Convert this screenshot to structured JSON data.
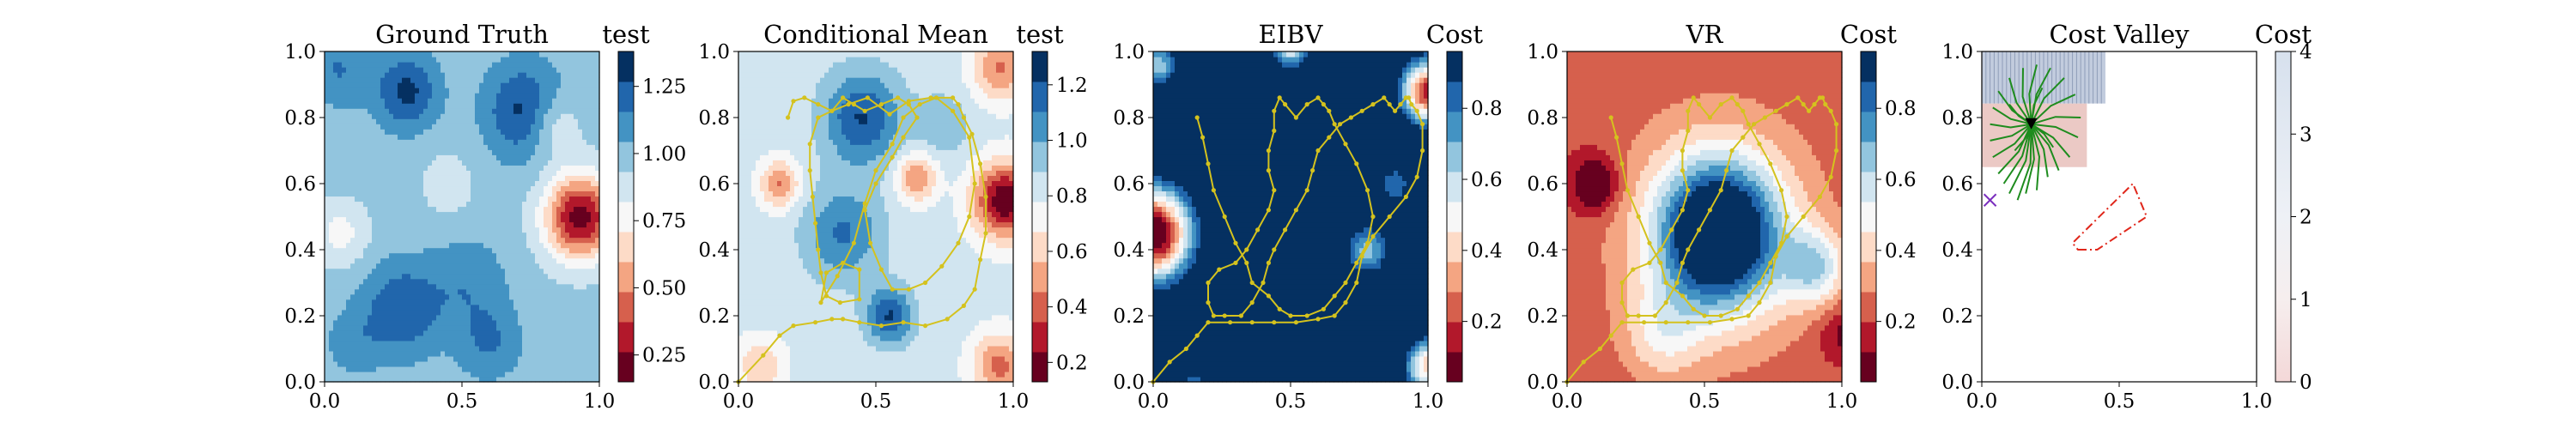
{
  "figure": {
    "colors": {
      "rdbu_classes": [
        "#67001f",
        "#b2182b",
        "#d6604d",
        "#f4a582",
        "#fddbc7",
        "#f7f7f7",
        "#d1e5f0",
        "#92c5de",
        "#4393c3",
        "#2166ac",
        "#053061"
      ],
      "path": "#d4c21e",
      "tree": "#1e8c1e",
      "polygon": "#e0261a",
      "marker_start": "#7b2fbe",
      "marker_current": "#000000"
    }
  },
  "chart_data": [
    {
      "type": "heatmap",
      "title": "Ground Truth",
      "colorbar_label": "test",
      "xlim": [
        0,
        1
      ],
      "ylim": [
        0,
        1
      ],
      "xticks": [
        "0.0",
        "0.5",
        "1.0"
      ],
      "yticks": [
        "0.0",
        "0.2",
        "0.4",
        "0.6",
        "0.8",
        "1.0"
      ],
      "cbar_ticks": [
        "0.25",
        "0.50",
        "0.75",
        "1.00",
        "1.25"
      ],
      "cbar_tick_values": [
        0.25,
        0.5,
        0.75,
        1.0,
        1.25
      ],
      "vmin": 0.15,
      "vmax": 1.38,
      "field": {
        "base": 0.98,
        "bumps": [
          {
            "x": 0.93,
            "y": 0.5,
            "a": -0.78,
            "s": 0.09
          },
          {
            "x": 0.83,
            "y": 0.78,
            "a": -0.22,
            "s": 0.07
          },
          {
            "x": 0.28,
            "y": 0.22,
            "a": 0.28,
            "s": 0.1
          },
          {
            "x": 0.52,
            "y": 0.3,
            "a": 0.15,
            "s": 0.1
          },
          {
            "x": 0.3,
            "y": 0.88,
            "a": 0.32,
            "s": 0.08
          },
          {
            "x": 0.73,
            "y": 0.82,
            "a": 0.34,
            "s": 0.1
          },
          {
            "x": 0.06,
            "y": 0.45,
            "a": -0.2,
            "s": 0.07
          },
          {
            "x": 0.45,
            "y": 0.6,
            "a": -0.1,
            "s": 0.08
          },
          {
            "x": 0.6,
            "y": 0.12,
            "a": 0.18,
            "s": 0.08
          },
          {
            "x": 0.1,
            "y": 0.12,
            "a": 0.12,
            "s": 0.07
          },
          {
            "x": 0.05,
            "y": 0.95,
            "a": 0.18,
            "s": 0.08
          }
        ]
      }
    },
    {
      "type": "heatmap",
      "title": "Conditional Mean",
      "colorbar_label": "test",
      "xlim": [
        0,
        1
      ],
      "ylim": [
        0,
        1
      ],
      "xticks": [
        "0.0",
        "0.5",
        "1.0"
      ],
      "yticks": [
        "0.0",
        "0.2",
        "0.4",
        "0.6",
        "0.8",
        "1.0"
      ],
      "cbar_ticks": [
        "0.2",
        "0.4",
        "0.6",
        "0.8",
        "1.0",
        "1.2"
      ],
      "cbar_tick_values": [
        0.2,
        0.4,
        0.6,
        0.8,
        1.0,
        1.2
      ],
      "vmin": 0.13,
      "vmax": 1.32,
      "field": {
        "base": 0.82,
        "bumps": [
          {
            "x": 0.97,
            "y": 0.55,
            "a": -0.68,
            "s": 0.08
          },
          {
            "x": 0.15,
            "y": 0.6,
            "a": -0.38,
            "s": 0.05
          },
          {
            "x": 0.65,
            "y": 0.62,
            "a": -0.38,
            "s": 0.05
          },
          {
            "x": 0.95,
            "y": 0.95,
            "a": -0.38,
            "s": 0.07
          },
          {
            "x": 0.95,
            "y": 0.05,
            "a": -0.4,
            "s": 0.07
          },
          {
            "x": 0.08,
            "y": 0.05,
            "a": -0.25,
            "s": 0.06
          },
          {
            "x": 0.45,
            "y": 0.8,
            "a": 0.4,
            "s": 0.1
          },
          {
            "x": 0.38,
            "y": 0.45,
            "a": 0.3,
            "s": 0.1
          },
          {
            "x": 0.55,
            "y": 0.2,
            "a": 0.4,
            "s": 0.06
          },
          {
            "x": 0.75,
            "y": 0.78,
            "a": 0.15,
            "s": 0.07
          }
        ]
      },
      "path": {
        "x": [
          0.0,
          0.09,
          0.15,
          0.2,
          0.28,
          0.34,
          0.38,
          0.44,
          0.52,
          0.6,
          0.68,
          0.76,
          0.82,
          0.86,
          0.88,
          0.9,
          0.9,
          0.88,
          0.85,
          0.82,
          0.8,
          0.78,
          0.7,
          0.62,
          0.55,
          0.47,
          0.4,
          0.34,
          0.29,
          0.26,
          0.26,
          0.27,
          0.28,
          0.29,
          0.3,
          0.32,
          0.37,
          0.44,
          0.44,
          0.38,
          0.32,
          0.3,
          0.36,
          0.42,
          0.46,
          0.5,
          0.56,
          0.6,
          0.66,
          0.72,
          0.78,
          0.84,
          0.86,
          0.84,
          0.8,
          0.74,
          0.68,
          0.62,
          0.56,
          0.52,
          0.48,
          0.46,
          0.5,
          0.56,
          0.6,
          0.65,
          0.62,
          0.58,
          0.52,
          0.46,
          0.42,
          0.38,
          0.34,
          0.29,
          0.24,
          0.2,
          0.18
        ],
        "y": [
          0.0,
          0.08,
          0.14,
          0.17,
          0.18,
          0.19,
          0.19,
          0.18,
          0.17,
          0.18,
          0.17,
          0.19,
          0.23,
          0.28,
          0.37,
          0.45,
          0.56,
          0.66,
          0.75,
          0.8,
          0.84,
          0.86,
          0.86,
          0.85,
          0.81,
          0.86,
          0.84,
          0.82,
          0.8,
          0.72,
          0.64,
          0.56,
          0.48,
          0.4,
          0.33,
          0.26,
          0.24,
          0.25,
          0.34,
          0.36,
          0.33,
          0.24,
          0.32,
          0.42,
          0.54,
          0.64,
          0.72,
          0.8,
          0.84,
          0.86,
          0.82,
          0.74,
          0.6,
          0.5,
          0.42,
          0.35,
          0.3,
          0.28,
          0.28,
          0.34,
          0.42,
          0.52,
          0.6,
          0.68,
          0.74,
          0.8,
          0.84,
          0.86,
          0.84,
          0.82,
          0.84,
          0.86,
          0.82,
          0.84,
          0.86,
          0.85,
          0.8
        ]
      }
    },
    {
      "type": "heatmap",
      "title": "EIBV",
      "colorbar_label": "Cost",
      "xlim": [
        0,
        1
      ],
      "ylim": [
        0,
        1
      ],
      "xticks": [
        "0.0",
        "0.5",
        "1.0"
      ],
      "yticks": [
        "0.0",
        "0.2",
        "0.4",
        "0.6",
        "0.8",
        "1.0"
      ],
      "cbar_ticks": [
        "0.2",
        "0.4",
        "0.6",
        "0.8"
      ],
      "cbar_tick_values": [
        0.2,
        0.4,
        0.6,
        0.8
      ],
      "vmin": 0.03,
      "vmax": 0.96,
      "field": {
        "base": 1.15,
        "bumps": [
          {
            "x": 0.0,
            "y": 0.45,
            "a": -1.18,
            "s": 0.1
          },
          {
            "x": 1.0,
            "y": 0.88,
            "a": -1.0,
            "s": 0.07
          },
          {
            "x": 1.0,
            "y": 0.05,
            "a": -0.75,
            "s": 0.06
          },
          {
            "x": 0.5,
            "y": 1.02,
            "a": -0.65,
            "s": 0.05
          },
          {
            "x": 0.02,
            "y": 0.96,
            "a": -0.5,
            "s": 0.05
          },
          {
            "x": 0.78,
            "y": 0.4,
            "a": -0.48,
            "s": 0.06
          },
          {
            "x": 0.88,
            "y": 0.6,
            "a": -0.35,
            "s": 0.05
          },
          {
            "x": 0.15,
            "y": 0.0,
            "a": -0.3,
            "s": 0.05
          },
          {
            "x": 0.58,
            "y": 0.0,
            "a": -0.25,
            "s": 0.05
          }
        ]
      },
      "path": {
        "x": [
          0.0,
          0.06,
          0.12,
          0.16,
          0.2,
          0.28,
          0.36,
          0.44,
          0.52,
          0.6,
          0.66,
          0.7,
          0.74,
          0.76,
          0.8,
          0.86,
          0.92,
          0.96,
          0.98,
          0.98,
          0.96,
          0.94,
          0.93,
          0.92,
          0.9,
          0.88,
          0.86,
          0.84,
          0.8,
          0.76,
          0.72,
          0.68,
          0.64,
          0.6,
          0.58,
          0.56,
          0.52,
          0.48,
          0.44,
          0.42,
          0.4,
          0.36,
          0.32,
          0.26,
          0.22,
          0.2,
          0.2,
          0.24,
          0.3,
          0.34,
          0.38,
          0.42,
          0.44,
          0.42,
          0.42,
          0.44,
          0.44,
          0.46,
          0.48,
          0.52,
          0.56,
          0.6,
          0.62,
          0.64,
          0.66,
          0.7,
          0.74,
          0.78,
          0.8,
          0.78,
          0.74,
          0.7,
          0.66,
          0.62,
          0.56,
          0.5,
          0.46,
          0.42,
          0.36,
          0.34,
          0.3,
          0.26,
          0.22,
          0.2,
          0.18,
          0.16
        ],
        "y": [
          0.0,
          0.06,
          0.1,
          0.14,
          0.18,
          0.18,
          0.18,
          0.18,
          0.18,
          0.19,
          0.2,
          0.24,
          0.3,
          0.38,
          0.44,
          0.5,
          0.56,
          0.62,
          0.7,
          0.78,
          0.82,
          0.84,
          0.86,
          0.86,
          0.84,
          0.82,
          0.84,
          0.86,
          0.84,
          0.82,
          0.8,
          0.78,
          0.74,
          0.7,
          0.64,
          0.58,
          0.52,
          0.46,
          0.4,
          0.36,
          0.3,
          0.24,
          0.2,
          0.2,
          0.2,
          0.24,
          0.3,
          0.34,
          0.36,
          0.4,
          0.46,
          0.52,
          0.58,
          0.64,
          0.7,
          0.76,
          0.82,
          0.86,
          0.84,
          0.8,
          0.84,
          0.86,
          0.84,
          0.82,
          0.78,
          0.72,
          0.66,
          0.58,
          0.5,
          0.42,
          0.36,
          0.3,
          0.26,
          0.22,
          0.2,
          0.2,
          0.22,
          0.26,
          0.3,
          0.36,
          0.42,
          0.5,
          0.58,
          0.66,
          0.74,
          0.8
        ]
      }
    },
    {
      "type": "heatmap",
      "title": "VR",
      "colorbar_label": "Cost",
      "xlim": [
        0,
        1
      ],
      "ylim": [
        0,
        1
      ],
      "xticks": [
        "0.0",
        "0.5",
        "1.0"
      ],
      "yticks": [
        "0.0",
        "0.2",
        "0.4",
        "0.6",
        "0.8",
        "1.0"
      ],
      "cbar_ticks": [
        "0.2",
        "0.4",
        "0.6",
        "0.8"
      ],
      "cbar_tick_values": [
        0.2,
        0.4,
        0.6,
        0.8
      ],
      "vmin": 0.03,
      "vmax": 0.96,
      "field": {
        "base": 0.22,
        "bumps": [
          {
            "x": 0.55,
            "y": 0.45,
            "a": 0.85,
            "s": 0.15
          },
          {
            "x": 0.55,
            "y": 0.45,
            "a": 0.2,
            "s": 0.25
          },
          {
            "x": 0.9,
            "y": 0.35,
            "a": 0.35,
            "s": 0.08
          },
          {
            "x": 0.35,
            "y": 0.15,
            "a": 0.2,
            "s": 0.1
          },
          {
            "x": 0.1,
            "y": 0.6,
            "a": -0.28,
            "s": 0.06
          },
          {
            "x": 1.0,
            "y": 0.15,
            "a": -0.15,
            "s": 0.06
          }
        ]
      },
      "path": {
        "x": [
          0.0,
          0.06,
          0.12,
          0.16,
          0.2,
          0.28,
          0.36,
          0.44,
          0.52,
          0.6,
          0.66,
          0.7,
          0.74,
          0.76,
          0.8,
          0.86,
          0.92,
          0.96,
          0.98,
          0.98,
          0.96,
          0.94,
          0.93,
          0.92,
          0.9,
          0.88,
          0.86,
          0.84,
          0.8,
          0.76,
          0.72,
          0.68,
          0.64,
          0.6,
          0.58,
          0.56,
          0.52,
          0.48,
          0.44,
          0.42,
          0.4,
          0.36,
          0.32,
          0.26,
          0.22,
          0.2,
          0.2,
          0.24,
          0.3,
          0.34,
          0.38,
          0.42,
          0.44,
          0.42,
          0.42,
          0.44,
          0.44,
          0.46,
          0.48,
          0.52,
          0.56,
          0.6,
          0.62,
          0.64,
          0.66,
          0.7,
          0.74,
          0.78,
          0.8,
          0.78,
          0.74,
          0.7,
          0.66,
          0.62,
          0.56,
          0.5,
          0.46,
          0.42,
          0.36,
          0.34,
          0.3,
          0.26,
          0.22,
          0.2,
          0.18,
          0.16
        ],
        "y": [
          0.0,
          0.06,
          0.1,
          0.14,
          0.18,
          0.18,
          0.18,
          0.18,
          0.18,
          0.19,
          0.2,
          0.24,
          0.3,
          0.38,
          0.44,
          0.5,
          0.56,
          0.62,
          0.7,
          0.78,
          0.82,
          0.84,
          0.86,
          0.86,
          0.84,
          0.82,
          0.84,
          0.86,
          0.84,
          0.82,
          0.8,
          0.78,
          0.74,
          0.7,
          0.64,
          0.58,
          0.52,
          0.46,
          0.4,
          0.36,
          0.3,
          0.24,
          0.2,
          0.2,
          0.2,
          0.24,
          0.3,
          0.34,
          0.36,
          0.4,
          0.46,
          0.52,
          0.58,
          0.64,
          0.7,
          0.76,
          0.82,
          0.86,
          0.84,
          0.8,
          0.84,
          0.86,
          0.84,
          0.82,
          0.78,
          0.72,
          0.66,
          0.58,
          0.5,
          0.42,
          0.36,
          0.3,
          0.26,
          0.22,
          0.2,
          0.2,
          0.22,
          0.26,
          0.3,
          0.36,
          0.42,
          0.5,
          0.58,
          0.66,
          0.74,
          0.8
        ]
      }
    },
    {
      "type": "heatmap",
      "title": "Cost Valley",
      "colorbar_label": "Cost",
      "xlim": [
        0,
        1
      ],
      "ylim": [
        0,
        1
      ],
      "xticks": [
        "0.0",
        "0.5",
        "1.0"
      ],
      "yticks": [
        "0.0",
        "0.2",
        "0.4",
        "0.6",
        "0.8",
        "1.0"
      ],
      "cbar_ticks": [
        "0",
        "1",
        "2",
        "3",
        "4"
      ],
      "cbar_tick_values": [
        0,
        1,
        2,
        3,
        4
      ],
      "vmin": 0,
      "vmax": 4,
      "region": {
        "x": [
          0.0,
          0.45
        ],
        "y": [
          0.65,
          1.0
        ]
      },
      "current_position": [
        0.18,
        0.78
      ],
      "start_position": [
        0.03,
        0.55
      ],
      "candidate_endpoints": [
        [
          0.03,
          0.73
        ],
        [
          0.04,
          0.68
        ],
        [
          0.06,
          0.63
        ],
        [
          0.08,
          0.6
        ],
        [
          0.1,
          0.57
        ],
        [
          0.13,
          0.55
        ],
        [
          0.16,
          0.57
        ],
        [
          0.2,
          0.58
        ],
        [
          0.24,
          0.62
        ],
        [
          0.28,
          0.64
        ],
        [
          0.32,
          0.68
        ],
        [
          0.35,
          0.74
        ],
        [
          0.36,
          0.8
        ],
        [
          0.34,
          0.87
        ],
        [
          0.3,
          0.92
        ],
        [
          0.25,
          0.95
        ],
        [
          0.2,
          0.96
        ],
        [
          0.15,
          0.95
        ],
        [
          0.1,
          0.92
        ],
        [
          0.06,
          0.88
        ],
        [
          0.04,
          0.83
        ],
        [
          0.03,
          0.78
        ],
        [
          0.12,
          0.7
        ],
        [
          0.26,
          0.71
        ],
        [
          0.22,
          0.89
        ],
        [
          0.1,
          0.84
        ]
      ],
      "polygon": {
        "x": [
          0.35,
          0.42,
          0.6,
          0.55,
          0.33
        ],
        "y": [
          0.4,
          0.4,
          0.5,
          0.6,
          0.42
        ]
      }
    }
  ]
}
